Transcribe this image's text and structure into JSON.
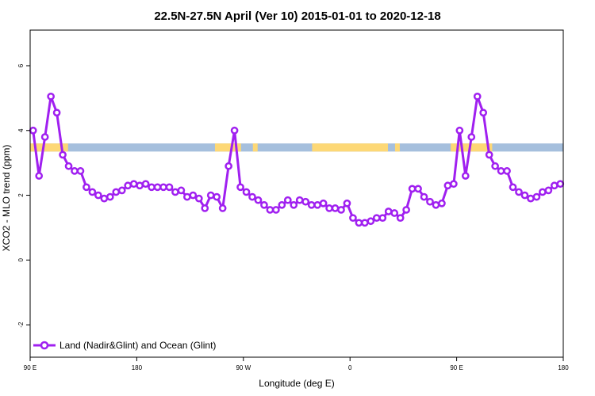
{
  "chart_data": {
    "type": "line",
    "title": "22.5N-27.5N April (Ver 10)   2015-01-01 to 2020-12-18",
    "xlabel": "Longitude (deg E)",
    "ylabel": "XCO2 - MLO trend (ppm)",
    "xlim": [
      90,
      540
    ],
    "ylim": [
      -3,
      7.1
    ],
    "x_ticks": [
      {
        "value": 90,
        "label": "90 E"
      },
      {
        "value": 180,
        "label": "180"
      },
      {
        "value": 270,
        "label": "90 W"
      },
      {
        "value": 360,
        "label": "0"
      },
      {
        "value": 450,
        "label": "90 E"
      },
      {
        "value": 540,
        "label": "180"
      }
    ],
    "y_ticks": [
      {
        "value": -2,
        "label": "-2"
      },
      {
        "value": 0,
        "label": "0"
      },
      {
        "value": 2,
        "label": "2"
      },
      {
        "value": 4,
        "label": "4"
      },
      {
        "value": 6,
        "label": "6"
      }
    ],
    "grid": false,
    "legend_position": "bottom-left",
    "surface_band": {
      "y_range": [
        3.35,
        3.6
      ],
      "land_color": "#fdd876",
      "ocean_color": "#a5bfdd",
      "land_segments": [
        [
          90,
          122
        ],
        [
          246,
          268
        ],
        [
          278,
          282
        ],
        [
          328,
          392
        ],
        [
          398,
          402
        ],
        [
          445,
          480
        ]
      ]
    },
    "series": [
      {
        "name": "Land (Nadir&Glint) and Ocean (Glint)",
        "color": "#a020f0",
        "x": [
          92.5,
          97.5,
          102.5,
          107.5,
          112.5,
          117.5,
          122.5,
          127.5,
          132.5,
          137.5,
          142.5,
          147.5,
          152.5,
          157.5,
          162.5,
          167.5,
          172.5,
          177.5,
          182.5,
          187.5,
          192.5,
          197.5,
          202.5,
          207.5,
          212.5,
          217.5,
          222.5,
          227.5,
          232.5,
          237.5,
          242.5,
          247.5,
          252.5,
          257.5,
          262.5,
          267.5,
          272.5,
          277.5,
          282.5,
          287.5,
          292.5,
          297.5,
          302.5,
          307.5,
          312.5,
          317.5,
          322.5,
          327.5,
          332.5,
          337.5,
          342.5,
          347.5,
          352.5,
          357.5,
          362.5,
          367.5,
          372.5,
          377.5,
          382.5,
          387.5,
          392.5,
          397.5,
          402.5,
          407.5,
          412.5,
          417.5,
          422.5,
          427.5,
          432.5,
          437.5,
          442.5,
          447.5,
          452.5,
          457.5,
          462.5,
          467.5,
          472.5,
          477.5,
          482.5,
          487.5,
          492.5,
          497.5,
          502.5,
          507.5,
          512.5,
          517.5,
          522.5,
          527.5,
          532.5,
          537.5
        ],
        "y": [
          4.0,
          2.6,
          3.8,
          5.05,
          4.55,
          3.25,
          2.9,
          2.75,
          2.75,
          2.25,
          2.1,
          2.0,
          1.9,
          1.95,
          2.1,
          2.15,
          2.3,
          2.35,
          2.3,
          2.35,
          2.25,
          2.25,
          2.25,
          2.25,
          2.1,
          2.15,
          1.95,
          2.0,
          1.9,
          1.6,
          2.0,
          1.95,
          1.6,
          2.9,
          4.0,
          2.25,
          2.1,
          1.95,
          1.85,
          1.7,
          1.55,
          1.55,
          1.7,
          1.85,
          1.7,
          1.85,
          1.8,
          1.7,
          1.7,
          1.75,
          1.6,
          1.6,
          1.55,
          1.75,
          1.3,
          1.15,
          1.15,
          1.2,
          1.3,
          1.3,
          1.5,
          1.45,
          1.3,
          1.55,
          2.2,
          2.2,
          1.95,
          1.8,
          1.7,
          1.75,
          2.3,
          2.35,
          4.0,
          2.6,
          3.8,
          5.05,
          4.55,
          3.25,
          2.9,
          2.75,
          2.75,
          2.25,
          2.1,
          2.0,
          1.9,
          1.95,
          2.1,
          2.15,
          2.3,
          2.35
        ]
      }
    ]
  }
}
